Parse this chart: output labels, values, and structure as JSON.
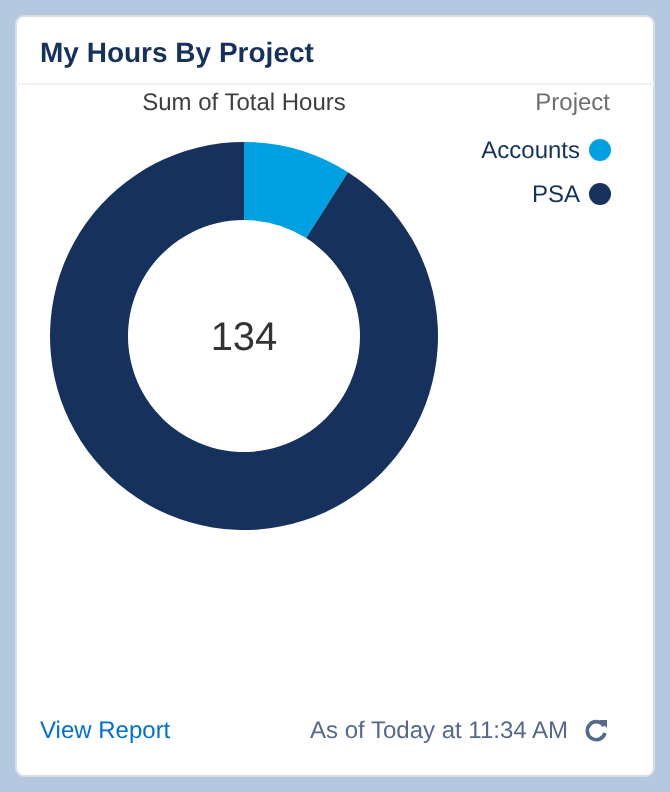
{
  "chart_data": {
    "type": "donut",
    "title": "My Hours By Project",
    "subtitle": "Sum of Total Hours",
    "legend_title": "Project",
    "legend": "top right",
    "categories": [
      "Accounts",
      "PSA"
    ],
    "values": [
      9,
      91
    ],
    "colors": [
      "#00a1e0",
      "#16325c"
    ],
    "annotations": [
      "134",
      "View Report",
      "As of Today at 11:34 AM"
    ]
  }
}
